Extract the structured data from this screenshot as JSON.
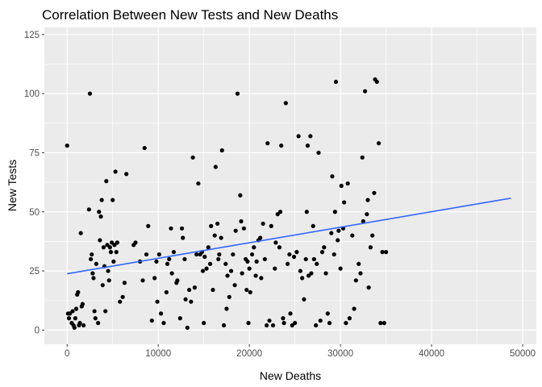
{
  "chart_data": {
    "type": "scatter",
    "title": "Correlation Between New Tests and New Deaths",
    "xlabel": "New Deaths",
    "ylabel": "New Tests",
    "xlim": [
      -2500,
      51500
    ],
    "ylim": [
      -6,
      128
    ],
    "x_ticks": [
      0,
      10000,
      20000,
      30000,
      40000,
      50000
    ],
    "x_tick_labels": [
      "0",
      "10000",
      "20000",
      "30000",
      "40000",
      "50000"
    ],
    "y_ticks": [
      0,
      25,
      50,
      75,
      100,
      125
    ],
    "y_tick_labels": [
      "0",
      "25",
      "50",
      "75",
      "100",
      "125"
    ],
    "grid": true,
    "theme": "ggplot2 grey",
    "colors": {
      "panel": "#ebebeb",
      "grid": "#ffffff",
      "points": "#000000",
      "trend": "#3366ff"
    },
    "trend_line": {
      "x": [
        0,
        48700
      ],
      "y": [
        23.8,
        55.8
      ]
    },
    "points": [
      [
        0,
        78
      ],
      [
        100,
        7
      ],
      [
        200,
        5
      ],
      [
        300,
        7
      ],
      [
        500,
        3
      ],
      [
        600,
        8
      ],
      [
        700,
        2
      ],
      [
        800,
        1
      ],
      [
        900,
        5
      ],
      [
        1000,
        9
      ],
      [
        1100,
        15
      ],
      [
        1200,
        16
      ],
      [
        1300,
        2
      ],
      [
        1400,
        3
      ],
      [
        1500,
        41
      ],
      [
        1600,
        10
      ],
      [
        1700,
        11
      ],
      [
        1800,
        2
      ],
      [
        2400,
        51
      ],
      [
        2500,
        100
      ],
      [
        2600,
        30
      ],
      [
        2700,
        32
      ],
      [
        2800,
        24
      ],
      [
        2900,
        22
      ],
      [
        3000,
        8
      ],
      [
        3100,
        5
      ],
      [
        3200,
        28
      ],
      [
        3400,
        3
      ],
      [
        3500,
        50
      ],
      [
        3600,
        38
      ],
      [
        3700,
        48
      ],
      [
        3800,
        55
      ],
      [
        3900,
        19
      ],
      [
        4000,
        35
      ],
      [
        4100,
        27
      ],
      [
        4200,
        8
      ],
      [
        4300,
        63
      ],
      [
        4400,
        36
      ],
      [
        4500,
        25
      ],
      [
        4600,
        21
      ],
      [
        4700,
        35
      ],
      [
        4800,
        33
      ],
      [
        4900,
        37
      ],
      [
        5000,
        55
      ],
      [
        5100,
        29
      ],
      [
        5200,
        36
      ],
      [
        5300,
        67
      ],
      [
        5400,
        33
      ],
      [
        5500,
        37
      ],
      [
        5800,
        12
      ],
      [
        6100,
        14
      ],
      [
        6300,
        20
      ],
      [
        6500,
        66
      ],
      [
        7300,
        36
      ],
      [
        7500,
        37
      ],
      [
        8000,
        29
      ],
      [
        8300,
        21
      ],
      [
        8500,
        77
      ],
      [
        8700,
        32
      ],
      [
        8900,
        44
      ],
      [
        9300,
        4
      ],
      [
        9600,
        22
      ],
      [
        9800,
        29
      ],
      [
        9900,
        12
      ],
      [
        10100,
        32
      ],
      [
        10300,
        7
      ],
      [
        10600,
        3
      ],
      [
        10900,
        16
      ],
      [
        11000,
        28
      ],
      [
        11200,
        30
      ],
      [
        11400,
        43
      ],
      [
        11500,
        24
      ],
      [
        11700,
        33
      ],
      [
        12000,
        20
      ],
      [
        12100,
        21
      ],
      [
        12400,
        5
      ],
      [
        12600,
        43
      ],
      [
        12700,
        39
      ],
      [
        12900,
        30
      ],
      [
        13000,
        13
      ],
      [
        13200,
        1
      ],
      [
        13400,
        17
      ],
      [
        13600,
        12
      ],
      [
        13800,
        73
      ],
      [
        14000,
        18
      ],
      [
        14200,
        32
      ],
      [
        14400,
        62
      ],
      [
        14600,
        32
      ],
      [
        14800,
        33
      ],
      [
        14900,
        25
      ],
      [
        15000,
        3
      ],
      [
        15100,
        31
      ],
      [
        15300,
        26
      ],
      [
        15500,
        35
      ],
      [
        15700,
        28
      ],
      [
        15800,
        44
      ],
      [
        16000,
        17
      ],
      [
        16200,
        40
      ],
      [
        16300,
        69
      ],
      [
        16500,
        45
      ],
      [
        16600,
        30
      ],
      [
        16700,
        32
      ],
      [
        16900,
        39
      ],
      [
        17000,
        76
      ],
      [
        17200,
        2
      ],
      [
        17400,
        28
      ],
      [
        17500,
        9
      ],
      [
        17600,
        23
      ],
      [
        17800,
        14
      ],
      [
        18000,
        25
      ],
      [
        18200,
        32
      ],
      [
        18400,
        19
      ],
      [
        18500,
        42
      ],
      [
        18700,
        100
      ],
      [
        19000,
        57
      ],
      [
        19100,
        46
      ],
      [
        19200,
        24
      ],
      [
        19400,
        43
      ],
      [
        19600,
        30
      ],
      [
        19700,
        17
      ],
      [
        19800,
        29
      ],
      [
        19900,
        3
      ],
      [
        20000,
        26
      ],
      [
        20100,
        16
      ],
      [
        20300,
        32
      ],
      [
        20500,
        35
      ],
      [
        20700,
        23
      ],
      [
        20800,
        29
      ],
      [
        21000,
        38
      ],
      [
        21200,
        39
      ],
      [
        21300,
        22
      ],
      [
        21500,
        45
      ],
      [
        21700,
        30
      ],
      [
        21900,
        2
      ],
      [
        22000,
        79
      ],
      [
        22200,
        4
      ],
      [
        22400,
        44
      ],
      [
        22600,
        2
      ],
      [
        22800,
        26
      ],
      [
        22900,
        37
      ],
      [
        23100,
        49
      ],
      [
        23300,
        35
      ],
      [
        23400,
        50
      ],
      [
        23500,
        78
      ],
      [
        23700,
        5
      ],
      [
        23800,
        3
      ],
      [
        24000,
        96
      ],
      [
        24200,
        28
      ],
      [
        24400,
        32
      ],
      [
        24500,
        7
      ],
      [
        24700,
        2
      ],
      [
        24900,
        31
      ],
      [
        25000,
        3
      ],
      [
        25200,
        33
      ],
      [
        25400,
        82
      ],
      [
        25600,
        25
      ],
      [
        25800,
        22
      ],
      [
        26000,
        13
      ],
      [
        26200,
        30
      ],
      [
        26300,
        50
      ],
      [
        26400,
        78
      ],
      [
        26500,
        23
      ],
      [
        26700,
        82
      ],
      [
        26800,
        24
      ],
      [
        27000,
        44
      ],
      [
        27100,
        30
      ],
      [
        27300,
        2
      ],
      [
        27400,
        28
      ],
      [
        27600,
        75
      ],
      [
        27800,
        4
      ],
      [
        28000,
        33
      ],
      [
        28200,
        35
      ],
      [
        28400,
        24
      ],
      [
        28600,
        7
      ],
      [
        28800,
        3
      ],
      [
        29000,
        41
      ],
      [
        29100,
        65
      ],
      [
        29300,
        32
      ],
      [
        29400,
        50
      ],
      [
        29500,
        105
      ],
      [
        29700,
        38
      ],
      [
        29800,
        42
      ],
      [
        30000,
        26
      ],
      [
        30100,
        61
      ],
      [
        30300,
        43
      ],
      [
        30400,
        54
      ],
      [
        30600,
        3
      ],
      [
        30800,
        62
      ],
      [
        31000,
        5
      ],
      [
        31300,
        40
      ],
      [
        31500,
        9
      ],
      [
        31700,
        21
      ],
      [
        32000,
        28
      ],
      [
        32200,
        24
      ],
      [
        32400,
        73
      ],
      [
        32500,
        46
      ],
      [
        32700,
        101
      ],
      [
        32900,
        49
      ],
      [
        33000,
        55
      ],
      [
        33100,
        18
      ],
      [
        33300,
        35
      ],
      [
        33500,
        40
      ],
      [
        33700,
        58
      ],
      [
        33800,
        106
      ],
      [
        34000,
        105
      ],
      [
        34200,
        79
      ],
      [
        34400,
        3
      ],
      [
        34600,
        33
      ],
      [
        34800,
        3
      ],
      [
        35000,
        33
      ]
    ]
  }
}
